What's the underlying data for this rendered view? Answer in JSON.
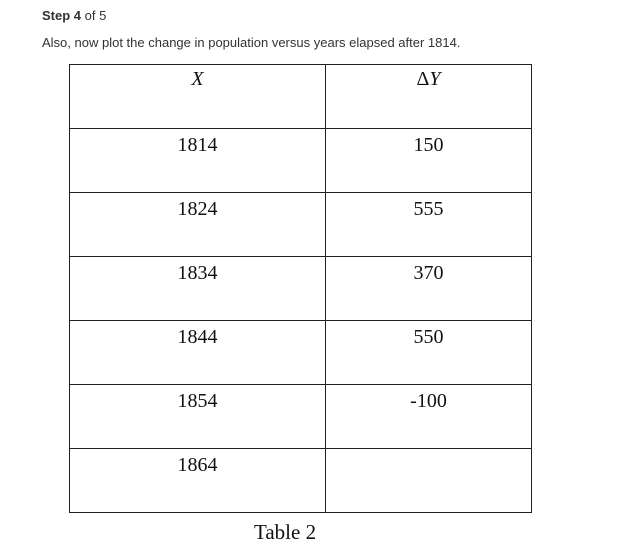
{
  "step": {
    "label": "Step",
    "number": "4",
    "of_text": "of 5"
  },
  "instruction": "Also, now plot the change in population versus years elapsed after 1814.",
  "table": {
    "headers": {
      "x": "X",
      "dy_delta": "Δ",
      "dy_var": "Y"
    },
    "rows": [
      {
        "x": "1814",
        "dy": "150"
      },
      {
        "x": "1824",
        "dy": "555"
      },
      {
        "x": "1834",
        "dy": "370"
      },
      {
        "x": "1844",
        "dy": "550"
      },
      {
        "x": "1854",
        "dy": "-100"
      },
      {
        "x": "1864",
        "dy": ""
      }
    ],
    "caption": "Table 2"
  }
}
